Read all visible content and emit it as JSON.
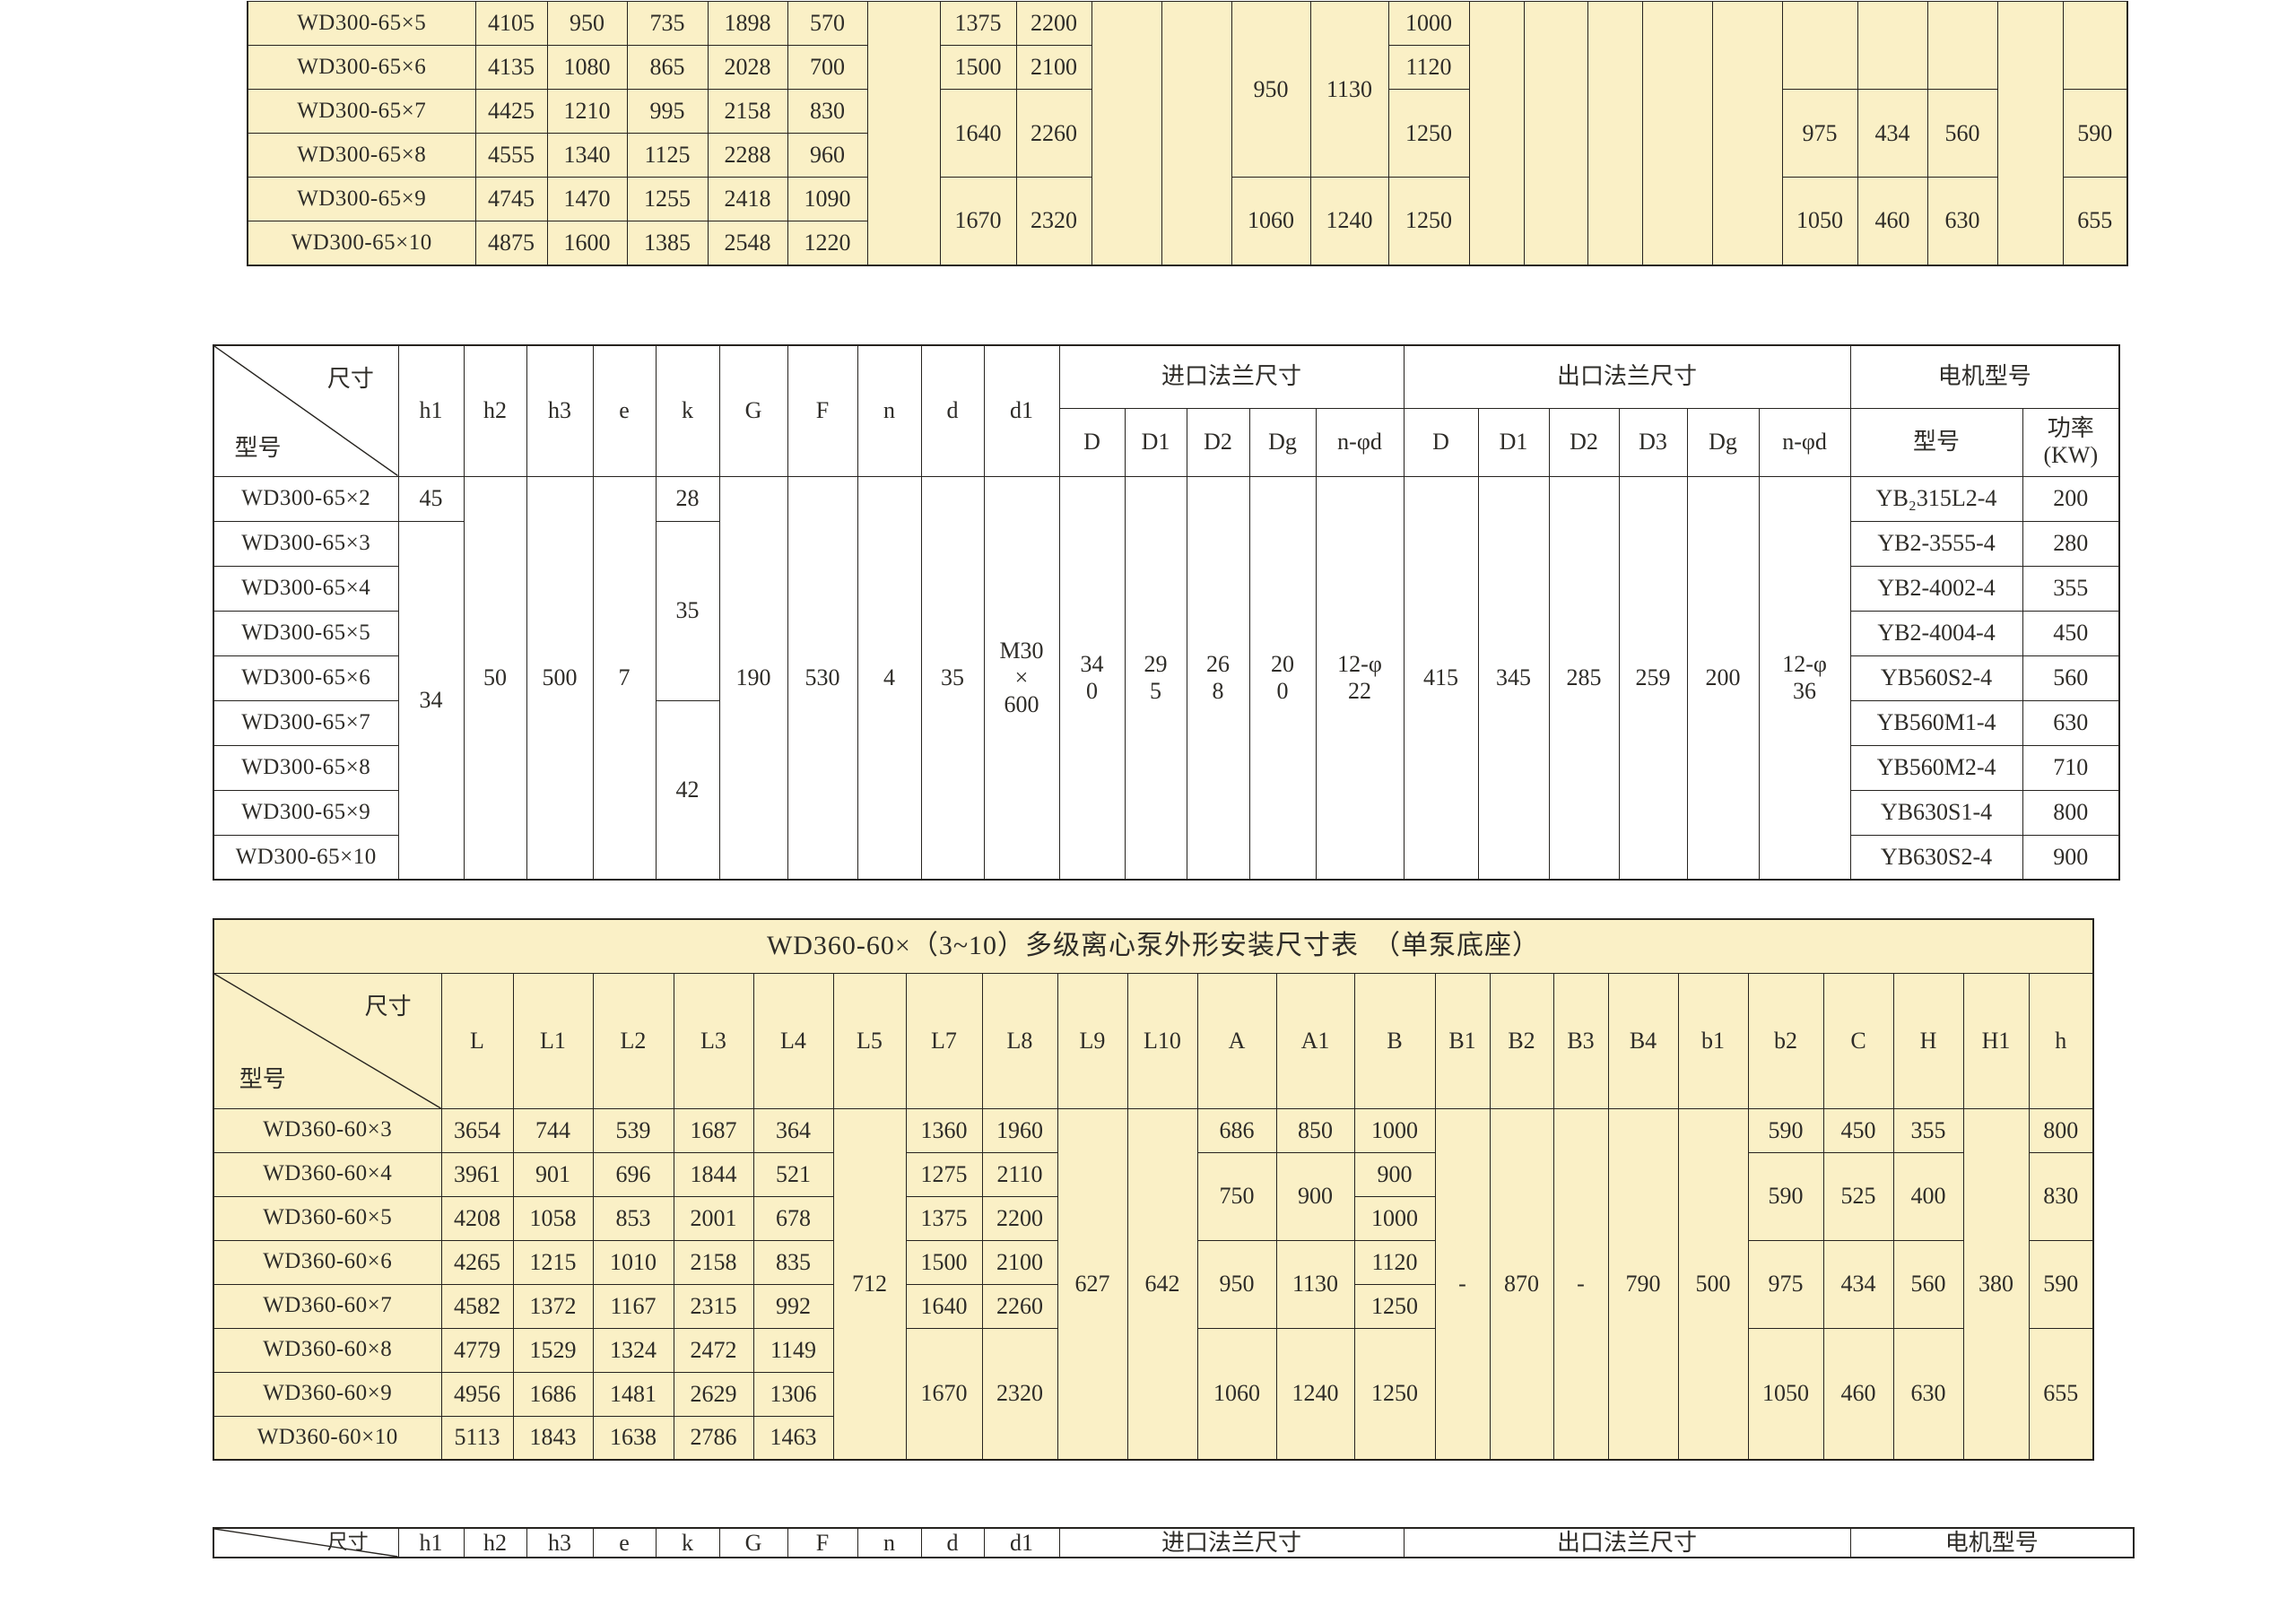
{
  "page": {
    "background": "#FFFFFF",
    "colors": {
      "table_beige": "#FAF0C6",
      "table_white": "#FFFFFF",
      "border": "#26231F",
      "text": "#2E2C28"
    }
  },
  "tables": [
    {
      "id": "wd300-outline-table-partial",
      "description_name": "wd300-65-outline-dimensions-bottom-rows",
      "rows": [
        [
          "WD300-65×5",
          "4105",
          "950",
          "735",
          "1898",
          "570",
          {
            "t": "",
            "rs": 6
          },
          "1375",
          "2200",
          {
            "t": "",
            "rs": 6
          },
          {
            "t": "",
            "rs": 6
          },
          {
            "t": "950",
            "rs": 4
          },
          {
            "t": "1130",
            "rs": 4
          },
          "1000",
          {
            "t": "",
            "rs": 6
          },
          {
            "t": "",
            "rs": 6
          },
          {
            "t": "",
            "rs": 6
          },
          {
            "t": "",
            "rs": 6
          },
          {
            "t": "",
            "rs": 6
          },
          {
            "t": "",
            "rs": 2
          },
          {
            "t": "",
            "rs": 2
          },
          {
            "t": "",
            "rs": 2
          },
          {
            "t": "",
            "rs": 6
          },
          {
            "t": "",
            "rs": 2
          }
        ],
        [
          "WD300-65×6",
          "4135",
          "1080",
          "865",
          "2028",
          "700",
          "1500",
          "2100",
          "1120"
        ],
        [
          "WD300-65×7",
          "4425",
          "1210",
          "995",
          "2158",
          "830",
          {
            "t": "1640",
            "rs": 2
          },
          {
            "t": "2260",
            "rs": 2
          },
          {
            "t": "1250",
            "rs": 2
          },
          {
            "t": "975",
            "rs": 2
          },
          {
            "t": "434",
            "rs": 2
          },
          {
            "t": "560",
            "rs": 2
          },
          {
            "t": "590",
            "rs": 2
          }
        ],
        [
          "WD300-65×8",
          "4555",
          "1340",
          "1125",
          "2288",
          "960"
        ],
        [
          "WD300-65×9",
          "4745",
          "1470",
          "1255",
          "2418",
          "1090",
          {
            "t": "1670",
            "rs": 2
          },
          {
            "t": "2320",
            "rs": 2
          },
          {
            "t": "1060",
            "rs": 2
          },
          {
            "t": "1240",
            "rs": 2
          },
          {
            "t": "1250",
            "rs": 2
          },
          {
            "t": "1050",
            "rs": 2
          },
          {
            "t": "460",
            "rs": 2
          },
          {
            "t": "630",
            "rs": 2
          },
          {
            "t": "655",
            "rs": 2
          }
        ],
        [
          "WD300-65×10",
          "4875",
          "1600",
          "1385",
          "2548",
          "1220"
        ]
      ]
    },
    {
      "id": "wd300-install-dimensions-table",
      "header": [
        [
          {
            "diag": {
              "top": "尺寸",
              "bottom": "型号"
            },
            "rs": 2
          },
          {
            "t": "h1",
            "rs": 2
          },
          {
            "t": "h2",
            "rs": 2
          },
          {
            "t": "h3",
            "rs": 2
          },
          {
            "t": "e",
            "rs": 2
          },
          {
            "t": "k",
            "rs": 2
          },
          {
            "t": "G",
            "rs": 2
          },
          {
            "t": "F",
            "rs": 2
          },
          {
            "t": "n",
            "rs": 2
          },
          {
            "t": "d",
            "rs": 2
          },
          {
            "t": "d1",
            "rs": 2
          },
          {
            "t": "进口法兰尺寸",
            "cs": 5
          },
          {
            "t": "出口法兰尺寸",
            "cs": 6
          },
          {
            "t": "电机型号",
            "cs": 2
          }
        ],
        [
          "D",
          "D1",
          "D2",
          "Dg",
          "n-φd",
          "D",
          "D1",
          "D2",
          "D3",
          "Dg",
          "n-φd",
          "型号",
          "功率\n(KW)"
        ]
      ],
      "rows": [
        [
          "WD300-65×2",
          "45",
          {
            "t": "50",
            "rs": 9
          },
          {
            "t": "500",
            "rs": 9
          },
          {
            "t": "7",
            "rs": 9
          },
          "28",
          {
            "t": "190",
            "rs": 9
          },
          {
            "t": "530",
            "rs": 9
          },
          {
            "t": "4",
            "rs": 9
          },
          {
            "t": "35",
            "rs": 9
          },
          {
            "t": "M30\n×\n600",
            "rs": 9
          },
          {
            "t": "34\n0",
            "rs": 9
          },
          {
            "t": "29\n5",
            "rs": 9
          },
          {
            "t": "26\n8",
            "rs": 9
          },
          {
            "t": "20\n0",
            "rs": 9
          },
          {
            "t": "12-φ\n22",
            "rs": 9
          },
          {
            "t": "415",
            "rs": 9
          },
          {
            "t": "345",
            "rs": 9
          },
          {
            "t": "285",
            "rs": 9
          },
          {
            "t": "259",
            "rs": 9
          },
          {
            "t": "200",
            "rs": 9
          },
          {
            "t": "12-φ\n36",
            "rs": 9
          },
          "YB₂315L2-4",
          "200"
        ],
        [
          "WD300-65×3",
          {
            "t": "34",
            "rs": 8
          },
          {
            "t": "35",
            "rs": 4
          },
          "YB2-3555-4",
          "280"
        ],
        [
          "WD300-65×4",
          "YB2-4002-4",
          "355"
        ],
        [
          "WD300-65×5",
          "YB2-4004-4",
          "450"
        ],
        [
          "WD300-65×6",
          "YB560S2-4",
          "560"
        ],
        [
          "WD300-65×7",
          {
            "t": "42",
            "rs": 4
          },
          "YB560M1-4",
          "630"
        ],
        [
          "WD300-65×8",
          "YB560M2-4",
          "710"
        ],
        [
          "WD300-65×9",
          "YB630S1-4",
          "800"
        ],
        [
          "WD300-65×10",
          "YB630S2-4",
          "900"
        ]
      ]
    },
    {
      "id": "wd360-outline-table",
      "title": "WD360-60×（3~10）多级离心泵外形安装尺寸表　（单泵底座）",
      "header": [
        [
          {
            "diag": {
              "top": "尺寸",
              "bottom": "型号"
            }
          },
          "L",
          "L1",
          "L2",
          "L3",
          "L4",
          "L5",
          "L7",
          "L8",
          "L9",
          "L10",
          "A",
          "A1",
          "B",
          "B1",
          "B2",
          "B3",
          "B4",
          "b1",
          "b2",
          "C",
          "H",
          "H1",
          "h"
        ]
      ],
      "rows": [
        [
          "WD360-60×3",
          "3654",
          "744",
          "539",
          "1687",
          "364",
          {
            "t": "712",
            "rs": 8
          },
          "1360",
          "1960",
          {
            "t": "627",
            "rs": 8
          },
          {
            "t": "642",
            "rs": 8
          },
          "686",
          "850",
          "1000",
          {
            "t": "-",
            "rs": 8
          },
          {
            "t": "870",
            "rs": 8
          },
          {
            "t": "-",
            "rs": 8
          },
          {
            "t": "790",
            "rs": 8
          },
          {
            "t": "500",
            "rs": 8
          },
          "590",
          "450",
          "355",
          {
            "t": "380",
            "rs": 8
          },
          "800"
        ],
        [
          "WD360-60×4",
          "3961",
          "901",
          "696",
          "1844",
          "521",
          "1275",
          "2110",
          {
            "t": "750",
            "rs": 2
          },
          {
            "t": "900",
            "rs": 2
          },
          "900",
          {
            "t": "590",
            "rs": 2
          },
          {
            "t": "525",
            "rs": 2
          },
          {
            "t": "400",
            "rs": 2
          },
          {
            "t": "830",
            "rs": 2
          }
        ],
        [
          "WD360-60×5",
          "4208",
          "1058",
          "853",
          "2001",
          "678",
          "1375",
          "2200",
          "1000"
        ],
        [
          "WD360-60×6",
          "4265",
          "1215",
          "1010",
          "2158",
          "835",
          "1500",
          "2100",
          {
            "t": "950",
            "rs": 2
          },
          {
            "t": "1130",
            "rs": 2
          },
          "1120",
          {
            "t": "975",
            "rs": 2
          },
          {
            "t": "434",
            "rs": 2
          },
          {
            "t": "560",
            "rs": 2
          },
          {
            "t": "590",
            "rs": 2
          }
        ],
        [
          "WD360-60×7",
          "4582",
          "1372",
          "1167",
          "2315",
          "992",
          "1640",
          "2260",
          "1250"
        ],
        [
          "WD360-60×8",
          "4779",
          "1529",
          "1324",
          "2472",
          "1149",
          {
            "t": "1670",
            "rs": 3
          },
          {
            "t": "2320",
            "rs": 3
          },
          {
            "t": "1060",
            "rs": 3
          },
          {
            "t": "1240",
            "rs": 3
          },
          {
            "t": "1250",
            "rs": 3
          },
          {
            "t": "1050",
            "rs": 3
          },
          {
            "t": "460",
            "rs": 3
          },
          {
            "t": "630",
            "rs": 3
          },
          {
            "t": "655",
            "rs": 3
          }
        ],
        [
          "WD360-60×9",
          "4956",
          "1686",
          "1481",
          "2629",
          "1306"
        ],
        [
          "WD360-60×10",
          "5113",
          "1843",
          "1638",
          "2786",
          "1463"
        ]
      ]
    },
    {
      "id": "wd360-install-table-header-sliver",
      "header": [
        [
          {
            "diag": {
              "top": "尺寸",
              "bottom": ""
            }
          },
          "h1",
          "h2",
          "h3",
          "e",
          "k",
          "G",
          "F",
          "n",
          "d",
          "d1",
          "进口法兰尺寸",
          "出口法兰尺寸",
          "电机型号"
        ]
      ],
      "rows": []
    }
  ]
}
